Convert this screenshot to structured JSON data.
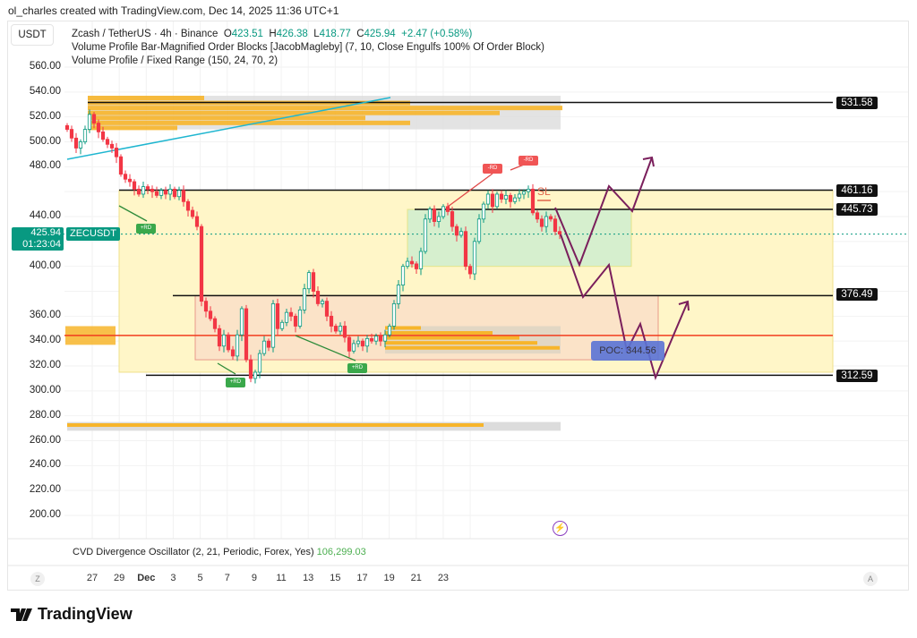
{
  "credit": "ol_charles created with TradingView.com, Dec 14, 2025 11:36 UTC+1",
  "currency": "USDT",
  "legend": {
    "symbol": "Zcash / TetherUS · 4h · Binance",
    "o_label": "O",
    "o": "423.51",
    "h_label": "H",
    "h": "426.38",
    "l_label": "L",
    "l": "418.77",
    "c_label": "C",
    "c": "425.94",
    "change": "+2.47 (+0.58%)",
    "indicator1": "Volume Profile Bar-Magnified Order Blocks [JacobMagleby] (7, 10, Close Engulfs 100% Of Order Block)",
    "indicator2": "Volume Profile / Fixed Range (150, 24, 70, 2)"
  },
  "current_price": {
    "price": "425.94",
    "countdown": "01:23:04",
    "symbol": "ZECUSDT"
  },
  "level_labels": [
    "531.58",
    "461.16",
    "445.73",
    "376.49",
    "312.59"
  ],
  "annotations": {
    "poc": "POC: 344.56",
    "sl": "SL",
    "plus_rd": "+RD",
    "minus_rd": "-RD"
  },
  "cvd": {
    "label": "CVD Divergence Oscillator (2, 21, Periodic, Forex, Yes)",
    "value": "106,299.03"
  },
  "time_axis": {
    "left_btn": "Z",
    "right_btn": "A"
  },
  "brand": "TradingView",
  "colors": {
    "up": "#089981",
    "down": "#f23645",
    "level": "#111111",
    "poc": "#f23c1e",
    "trend": "#1fb6d0",
    "projection": "#7a1f5c",
    "range_box": "#fff6c8",
    "demand_box": "#d6efce",
    "supply_box": "#fbe3c8",
    "volume_profile": "#f7b52a"
  },
  "chart_data": {
    "type": "candlestick",
    "interval": "4h",
    "y_ticks": [
      "560.00",
      "540.00",
      "520.00",
      "500.00",
      "480.00",
      "440.00",
      "400.00",
      "360.00",
      "340.00",
      "320.00",
      "300.00",
      "280.00",
      "260.00",
      "240.00",
      "220.00",
      "200.00"
    ],
    "ylim": [
      200,
      560
    ],
    "x_ticks": [
      "27",
      "29",
      "Dec",
      "3",
      "5",
      "7",
      "9",
      "11",
      "13",
      "15",
      "17",
      "19",
      "21",
      "23"
    ],
    "closes": [
      510,
      503,
      495,
      500,
      510,
      522,
      515,
      508,
      502,
      498,
      495,
      488,
      474,
      470,
      468,
      462,
      458,
      464,
      462,
      460,
      457,
      461,
      458,
      462,
      456,
      461,
      452,
      445,
      440,
      432,
      372,
      364,
      358,
      350,
      336,
      345,
      333,
      328,
      345,
      366,
      325,
      310,
      315,
      330,
      340,
      335,
      370,
      350,
      355,
      363,
      360,
      352,
      365,
      382,
      395,
      380,
      370,
      372,
      360,
      352,
      348,
      352,
      343,
      332,
      338,
      340,
      336,
      342,
      340,
      344,
      340,
      345,
      352,
      370,
      385,
      400,
      404,
      402,
      398,
      412,
      438,
      446,
      436,
      440,
      448,
      444,
      432,
      425,
      428,
      400,
      394,
      420,
      438,
      450,
      458,
      448,
      458,
      454,
      457,
      452,
      455,
      458,
      460,
      462,
      443,
      438,
      432,
      440,
      438,
      428,
      425.94
    ],
    "horizontal_levels": [
      531.58,
      461.16,
      445.73,
      376.49,
      312.59
    ],
    "poc": 344.56,
    "grid": true
  }
}
